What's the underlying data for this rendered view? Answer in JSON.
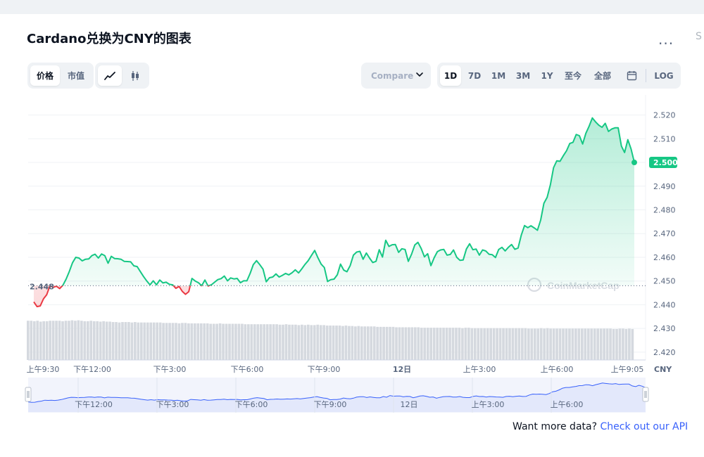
{
  "title": "Cardano兑换为CNY的图表",
  "more_label": "...",
  "right_sliver": "S",
  "toolbar": {
    "metric_tabs": [
      {
        "label": "价格",
        "active": true
      },
      {
        "label": "市值",
        "active": false
      }
    ],
    "chart_types": [
      {
        "icon": "line-chart-icon",
        "active": true
      },
      {
        "icon": "candlestick-icon",
        "active": false
      }
    ],
    "compare_label": "Compare w",
    "ranges": [
      {
        "label": "1D",
        "active": true
      },
      {
        "label": "7D",
        "active": false
      },
      {
        "label": "1M",
        "active": false
      },
      {
        "label": "3M",
        "active": false
      },
      {
        "label": "1Y",
        "active": false
      },
      {
        "label": "至今",
        "active": false
      },
      {
        "label": "全部",
        "active": false
      }
    ],
    "calendar_icon": "calendar-icon",
    "log_label": "LOG"
  },
  "chart_data": {
    "type": "area",
    "title": "Cardano兑换为CNY的图表",
    "unit": "CNY",
    "y_ticks": [
      "2.520",
      "2.510",
      "2.500",
      "2.490",
      "2.480",
      "2.470",
      "2.460",
      "2.450",
      "2.440",
      "2.430",
      "2.420"
    ],
    "x_ticks": [
      "上午9:30",
      "下午12:00",
      "下午3:00",
      "下午6:00",
      "下午9:00",
      "12日",
      "上午3:00",
      "上午6:00",
      "上午9:05"
    ],
    "ylim": [
      2.4167,
      2.527
    ],
    "baseline": {
      "value": 2.448,
      "label": "2.448"
    },
    "current": {
      "value": 2.5,
      "label": "2.500"
    },
    "colors": {
      "up": "#16c784",
      "down": "#ea3943",
      "volume": "#d5d9df",
      "navigator_line": "#3861fb",
      "navigator_fill": "#e3e8fb"
    },
    "grid": true,
    "watermark": "CoinMarketCap",
    "series": [
      {
        "values": [
          2.4412,
          2.4392,
          2.4395,
          2.4425,
          2.4442,
          2.448,
          2.4473,
          2.4478,
          2.4468,
          2.4482,
          2.4508,
          2.454,
          2.4577,
          2.46,
          2.4597,
          2.4585,
          2.4592,
          2.4593,
          2.4607,
          2.4613,
          2.4597,
          2.4614,
          2.4607,
          2.4575,
          2.4604,
          2.4595,
          2.4594,
          2.4592,
          2.4583,
          2.4582,
          2.4581,
          2.4564,
          2.4561,
          2.454,
          2.4519,
          2.45,
          2.4484,
          2.4501,
          2.4484,
          2.4504,
          2.4492,
          2.4495,
          2.4486,
          2.4484,
          2.4469,
          2.4477,
          2.4456,
          2.4444,
          2.4455,
          2.4511,
          2.45,
          2.4493,
          2.448,
          2.4504,
          2.4479,
          2.4484,
          2.4495,
          2.4506,
          2.451,
          2.4521,
          2.4501,
          2.4513,
          2.4509,
          2.4511,
          2.4493,
          2.4501,
          2.4501,
          2.4532,
          2.4569,
          2.4586,
          2.4569,
          2.455,
          2.4497,
          2.4514,
          2.4517,
          2.453,
          2.4517,
          2.4524,
          2.4532,
          2.4526,
          2.4535,
          2.4547,
          2.4534,
          2.4551,
          2.457,
          2.4586,
          2.4608,
          2.4629,
          2.4598,
          2.4571,
          2.4557,
          2.4498,
          2.4506,
          2.4508,
          2.4526,
          2.4571,
          2.4546,
          2.4539,
          2.4565,
          2.4609,
          2.4622,
          2.4625,
          2.4592,
          2.4618,
          2.4597,
          2.4578,
          2.4583,
          2.4632,
          2.4601,
          2.4672,
          2.4646,
          2.4653,
          2.4654,
          2.4621,
          2.4636,
          2.4633,
          2.4583,
          2.4613,
          2.4652,
          2.4663,
          2.4637,
          2.4602,
          2.4615,
          2.4565,
          2.4598,
          2.4624,
          2.4631,
          2.4633,
          2.4609,
          2.4612,
          2.4631,
          2.46,
          2.4587,
          2.4589,
          2.4635,
          2.4657,
          2.4632,
          2.4635,
          2.4609,
          2.4631,
          2.4627,
          2.4613,
          2.4611,
          2.4599,
          2.4633,
          2.4642,
          2.4627,
          2.4642,
          2.4654,
          2.4634,
          2.4639,
          2.4694,
          2.4734,
          2.4725,
          2.4733,
          2.4724,
          2.4714,
          2.4757,
          2.4828,
          2.4853,
          2.4906,
          2.4978,
          2.5007,
          2.5005,
          2.5028,
          2.5049,
          2.508,
          2.5085,
          2.5118,
          2.5113,
          2.5078,
          2.5123,
          2.5153,
          2.5188,
          2.5171,
          2.5157,
          2.5148,
          2.5165,
          2.5131,
          2.5141,
          2.5146,
          2.5146,
          2.5069,
          2.5042,
          2.5096,
          2.5057,
          2.5001
        ]
      }
    ],
    "volume": [
      0.9,
      0.9,
      0.89,
      0.9,
      0.88,
      0.89,
      0.89,
      0.9,
      0.9,
      0.9,
      0.9,
      0.89,
      0.9,
      0.9,
      0.91,
      0.9,
      0.91,
      0.9,
      0.89,
      0.89,
      0.9,
      0.89,
      0.89,
      0.88,
      0.89,
      0.88,
      0.88,
      0.87,
      0.87,
      0.86,
      0.87,
      0.87,
      0.87,
      0.86,
      0.87,
      0.86,
      0.86,
      0.86,
      0.86,
      0.86,
      0.86,
      0.86,
      0.86,
      0.85,
      0.85,
      0.85,
      0.85,
      0.85,
      0.84,
      0.85,
      0.85,
      0.84,
      0.84,
      0.84,
      0.84,
      0.84,
      0.84,
      0.84,
      0.83,
      0.83,
      0.83,
      0.84,
      0.83,
      0.83,
      0.83,
      0.83,
      0.83,
      0.83,
      0.83,
      0.82,
      0.82,
      0.82,
      0.82,
      0.82,
      0.82,
      0.82,
      0.82,
      0.82,
      0.82,
      0.82,
      0.81,
      0.81,
      0.82,
      0.81,
      0.81,
      0.81,
      0.8,
      0.81,
      0.8,
      0.81,
      0.8,
      0.8,
      0.81,
      0.8,
      0.8,
      0.79,
      0.79,
      0.79,
      0.79,
      0.79,
      0.78,
      0.79,
      0.78,
      0.78,
      0.77,
      0.78,
      0.77,
      0.77,
      0.77,
      0.77,
      0.77,
      0.76,
      0.76,
      0.76,
      0.76,
      0.76,
      0.76,
      0.75,
      0.75,
      0.75,
      0.75,
      0.75,
      0.75,
      0.75,
      0.75,
      0.74,
      0.74,
      0.74,
      0.74,
      0.74,
      0.74,
      0.74,
      0.74,
      0.74,
      0.74,
      0.74,
      0.74,
      0.74,
      0.73,
      0.74,
      0.74,
      0.73,
      0.73,
      0.73,
      0.73,
      0.73,
      0.73,
      0.73,
      0.73,
      0.73,
      0.73,
      0.73,
      0.73,
      0.73,
      0.73,
      0.73,
      0.73,
      0.73,
      0.73,
      0.72,
      0.72,
      0.72,
      0.72,
      0.73,
      0.72,
      0.73,
      0.72,
      0.72,
      0.72,
      0.72,
      0.72,
      0.72,
      0.72,
      0.72,
      0.72,
      0.72,
      0.72,
      0.72,
      0.72,
      0.72,
      0.72,
      0.72,
      0.72,
      0.72,
      0.72,
      0.72,
      0.71,
      0.71,
      0.72,
      0.72,
      0.71,
      0.72,
      0.71
    ]
  },
  "navigator": {
    "labels": [
      "下午12:00",
      "下午3:00",
      "下午6:00",
      "下午9:00",
      "12日",
      "上午3:00",
      "上午6:00"
    ]
  },
  "footer": {
    "prompt": "Want more data?",
    "link": "Check out our API"
  }
}
